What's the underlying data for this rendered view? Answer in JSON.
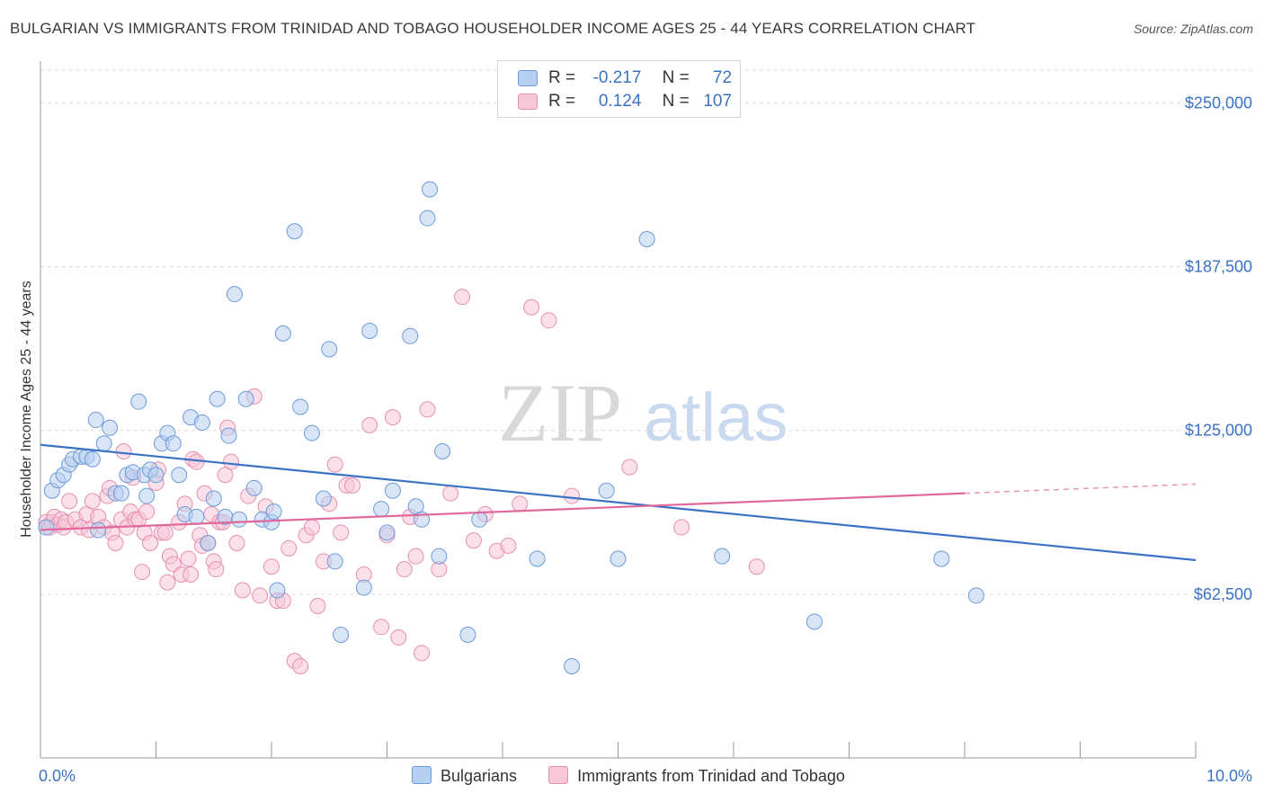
{
  "title": "BULGARIAN VS IMMIGRANTS FROM TRINIDAD AND TOBAGO HOUSEHOLDER INCOME AGES 25 - 44 YEARS CORRELATION CHART",
  "source": "Source: ZipAtlas.com",
  "watermark": {
    "zip": "ZIP",
    "atlas": "atlas"
  },
  "legend": {
    "rows": [
      {
        "r_label": "R =",
        "r_value": "-0.217",
        "n_label": "N =",
        "n_value": "72"
      },
      {
        "r_label": "R =",
        "r_value": "0.124",
        "n_label": "N =",
        "n_value": "107"
      }
    ]
  },
  "colors": {
    "blue": "#3b73c4",
    "blue_fill": "#b7cff0",
    "blue_stroke": "#6f9ad8",
    "pink": "#e0679a",
    "pink_fill": "#f7c6d7",
    "pink_stroke": "#e58fb2",
    "grid": "#dddddd",
    "axis_label": "#3b73c4"
  },
  "chart_data": {
    "type": "scatter",
    "ylabel": "Householder Income Ages 25 - 44 years",
    "xlim": [
      0,
      10
    ],
    "ylim": [
      0,
      262500
    ],
    "x_tick_labels": [
      "0.0%",
      "10.0%"
    ],
    "y_ticks": [
      62500,
      125000,
      187500,
      250000
    ],
    "y_tick_labels": [
      "$62,500",
      "$125,000",
      "$187,500",
      "$250,000"
    ],
    "grid": true,
    "legend_position": "top-center",
    "series": [
      {
        "name": "Bulgarians",
        "color": "#3b73c4",
        "trend": {
          "x": [
            0,
            10
          ],
          "y": [
            119500,
            75500
          ]
        },
        "points": [
          [
            0.05,
            88000
          ],
          [
            0.1,
            102000
          ],
          [
            0.15,
            106000
          ],
          [
            0.2,
            108000
          ],
          [
            0.25,
            112000
          ],
          [
            0.28,
            114000
          ],
          [
            0.35,
            115000
          ],
          [
            0.4,
            115000
          ],
          [
            0.45,
            114000
          ],
          [
            0.48,
            129000
          ],
          [
            0.5,
            87000
          ],
          [
            0.55,
            120000
          ],
          [
            0.6,
            126000
          ],
          [
            0.65,
            101000
          ],
          [
            0.7,
            101000
          ],
          [
            0.75,
            108000
          ],
          [
            0.8,
            109000
          ],
          [
            0.85,
            136000
          ],
          [
            0.9,
            108000
          ],
          [
            0.92,
            100000
          ],
          [
            0.95,
            110000
          ],
          [
            1.0,
            108000
          ],
          [
            1.05,
            120000
          ],
          [
            1.1,
            124000
          ],
          [
            1.15,
            120000
          ],
          [
            1.2,
            108000
          ],
          [
            1.25,
            93000
          ],
          [
            1.3,
            130000
          ],
          [
            1.35,
            92000
          ],
          [
            1.4,
            128000
          ],
          [
            1.45,
            82000
          ],
          [
            1.5,
            99000
          ],
          [
            1.53,
            137000
          ],
          [
            1.6,
            92000
          ],
          [
            1.63,
            123000
          ],
          [
            1.68,
            177000
          ],
          [
            1.72,
            91000
          ],
          [
            1.78,
            137000
          ],
          [
            1.85,
            103000
          ],
          [
            1.92,
            91000
          ],
          [
            2.0,
            90000
          ],
          [
            2.02,
            94000
          ],
          [
            2.05,
            64000
          ],
          [
            2.1,
            162000
          ],
          [
            2.2,
            201000
          ],
          [
            2.25,
            134000
          ],
          [
            2.35,
            124000
          ],
          [
            2.45,
            99000
          ],
          [
            2.5,
            156000
          ],
          [
            2.55,
            75000
          ],
          [
            2.6,
            47000
          ],
          [
            2.8,
            65000
          ],
          [
            2.85,
            163000
          ],
          [
            2.95,
            95000
          ],
          [
            3.0,
            86000
          ],
          [
            3.05,
            102000
          ],
          [
            3.2,
            161000
          ],
          [
            3.25,
            96000
          ],
          [
            3.3,
            91000
          ],
          [
            3.35,
            206000
          ],
          [
            3.37,
            217000
          ],
          [
            3.45,
            77000
          ],
          [
            3.48,
            117000
          ],
          [
            3.7,
            47000
          ],
          [
            3.8,
            91000
          ],
          [
            4.3,
            76000
          ],
          [
            4.6,
            35000
          ],
          [
            4.9,
            102000
          ],
          [
            5.0,
            76000
          ],
          [
            5.25,
            198000
          ],
          [
            5.9,
            77000
          ],
          [
            6.7,
            52000
          ],
          [
            7.8,
            76000
          ],
          [
            8.1,
            62000
          ]
        ]
      },
      {
        "name": "Immigrants from Trinidad and Tobago",
        "color": "#e0679a",
        "trend": {
          "x": [
            0,
            8
          ],
          "y": [
            87000,
            101000
          ]
        },
        "trend_dashed": {
          "x": [
            8,
            10
          ],
          "y": [
            101000,
            104500
          ]
        },
        "points": [
          [
            0.05,
            90000
          ],
          [
            0.08,
            88000
          ],
          [
            0.1,
            90000
          ],
          [
            0.12,
            92000
          ],
          [
            0.15,
            89000
          ],
          [
            0.18,
            91000
          ],
          [
            0.2,
            88000
          ],
          [
            0.22,
            90000
          ],
          [
            0.25,
            98000
          ],
          [
            0.3,
            91000
          ],
          [
            0.35,
            88000
          ],
          [
            0.4,
            93000
          ],
          [
            0.42,
            87000
          ],
          [
            0.45,
            98000
          ],
          [
            0.5,
            92000
          ],
          [
            0.55,
            88000
          ],
          [
            0.58,
            100000
          ],
          [
            0.6,
            103000
          ],
          [
            0.62,
            86000
          ],
          [
            0.65,
            82000
          ],
          [
            0.7,
            91000
          ],
          [
            0.72,
            117000
          ],
          [
            0.75,
            88000
          ],
          [
            0.78,
            94000
          ],
          [
            0.8,
            107000
          ],
          [
            0.82,
            91000
          ],
          [
            0.85,
            91000
          ],
          [
            0.88,
            71000
          ],
          [
            0.9,
            86000
          ],
          [
            0.92,
            94000
          ],
          [
            0.95,
            82000
          ],
          [
            1.0,
            105000
          ],
          [
            1.02,
            110000
          ],
          [
            1.05,
            86000
          ],
          [
            1.08,
            86000
          ],
          [
            1.1,
            67000
          ],
          [
            1.12,
            77000
          ],
          [
            1.15,
            74000
          ],
          [
            1.2,
            90000
          ],
          [
            1.22,
            70000
          ],
          [
            1.25,
            97000
          ],
          [
            1.28,
            76000
          ],
          [
            1.3,
            70000
          ],
          [
            1.32,
            114000
          ],
          [
            1.35,
            113000
          ],
          [
            1.38,
            85000
          ],
          [
            1.4,
            81000
          ],
          [
            1.42,
            101000
          ],
          [
            1.45,
            82000
          ],
          [
            1.48,
            93000
          ],
          [
            1.5,
            75000
          ],
          [
            1.52,
            72000
          ],
          [
            1.55,
            90000
          ],
          [
            1.58,
            90000
          ],
          [
            1.6,
            108000
          ],
          [
            1.62,
            126000
          ],
          [
            1.65,
            113000
          ],
          [
            1.7,
            82000
          ],
          [
            1.75,
            64000
          ],
          [
            1.8,
            100000
          ],
          [
            1.85,
            138000
          ],
          [
            1.9,
            62000
          ],
          [
            1.95,
            96000
          ],
          [
            2.0,
            73000
          ],
          [
            2.05,
            60000
          ],
          [
            2.1,
            60000
          ],
          [
            2.15,
            80000
          ],
          [
            2.2,
            37000
          ],
          [
            2.25,
            35000
          ],
          [
            2.3,
            85000
          ],
          [
            2.35,
            88000
          ],
          [
            2.4,
            58000
          ],
          [
            2.45,
            75000
          ],
          [
            2.5,
            97000
          ],
          [
            2.55,
            112000
          ],
          [
            2.6,
            86000
          ],
          [
            2.65,
            104000
          ],
          [
            2.7,
            104000
          ],
          [
            2.8,
            70000
          ],
          [
            2.85,
            127000
          ],
          [
            2.95,
            50000
          ],
          [
            3.0,
            85000
          ],
          [
            3.05,
            130000
          ],
          [
            3.1,
            46000
          ],
          [
            3.15,
            72000
          ],
          [
            3.2,
            92000
          ],
          [
            3.25,
            77000
          ],
          [
            3.3,
            40000
          ],
          [
            3.35,
            133000
          ],
          [
            3.45,
            72000
          ],
          [
            3.55,
            101000
          ],
          [
            3.65,
            176000
          ],
          [
            3.75,
            83000
          ],
          [
            3.85,
            93000
          ],
          [
            3.95,
            79000
          ],
          [
            4.05,
            81000
          ],
          [
            4.15,
            97000
          ],
          [
            4.25,
            172000
          ],
          [
            4.4,
            167000
          ],
          [
            4.6,
            100000
          ],
          [
            5.1,
            111000
          ],
          [
            5.55,
            88000
          ],
          [
            6.2,
            73000
          ]
        ]
      }
    ]
  },
  "bottom_legend": [
    "Bulgarians",
    "Immigrants from Trinidad and Tobago"
  ]
}
